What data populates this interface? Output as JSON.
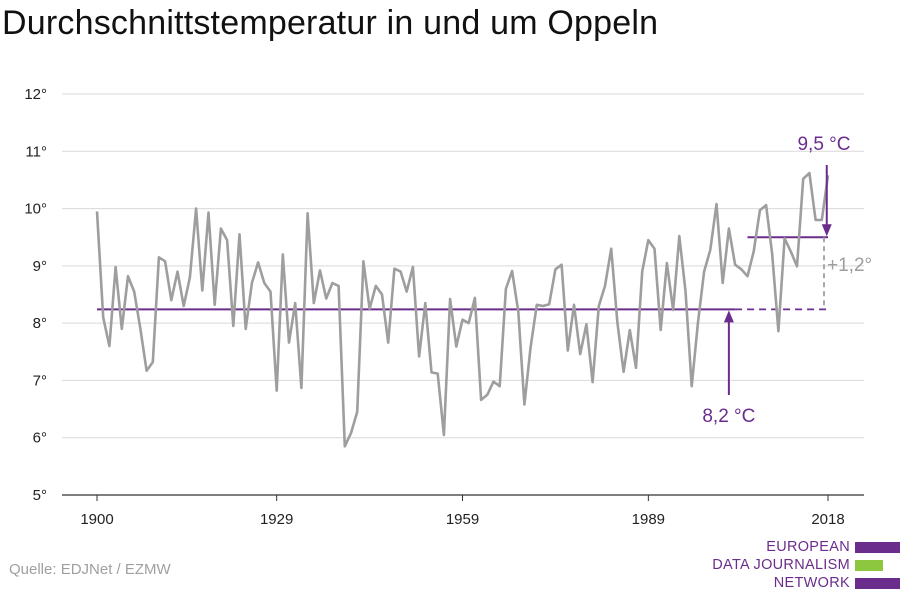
{
  "title": "Durchschnittstemperatur in und um Oppeln",
  "source": "Quelle: EDJNet / EZMW",
  "logo": {
    "lines": [
      "EUROPEAN",
      "DATA JOURNALISM",
      "NETWORK"
    ],
    "colors": [
      "#6b2d8c",
      "#8dc63f",
      "#6b2d8c"
    ]
  },
  "colors": {
    "series": "#9e9e9e",
    "accent": "#6b2d8c",
    "difference": "#9e9e9e",
    "grid": "#d9d9d9",
    "axis": "#333333"
  },
  "chart_data": {
    "type": "line",
    "title": "Durchschnittstemperatur in und um Oppeln",
    "xlabel": "",
    "ylabel": "",
    "xlim": [
      1900,
      2018
    ],
    "ylim": [
      5,
      12
    ],
    "xticks": [
      1900,
      1929,
      1959,
      1989,
      2018
    ],
    "yticks": [
      5,
      6,
      7,
      8,
      9,
      10,
      11,
      12
    ],
    "ytick_labels": [
      "5°",
      "6°",
      "7°",
      "8°",
      "9°",
      "10°",
      "11°",
      "12°"
    ],
    "grid": true,
    "x": [
      1900,
      1901,
      1902,
      1903,
      1904,
      1905,
      1906,
      1907,
      1908,
      1909,
      1910,
      1911,
      1912,
      1913,
      1914,
      1915,
      1916,
      1917,
      1918,
      1919,
      1920,
      1921,
      1922,
      1923,
      1924,
      1925,
      1926,
      1927,
      1928,
      1929,
      1930,
      1931,
      1932,
      1933,
      1934,
      1935,
      1936,
      1937,
      1938,
      1939,
      1940,
      1941,
      1942,
      1943,
      1944,
      1945,
      1946,
      1947,
      1948,
      1949,
      1950,
      1951,
      1952,
      1953,
      1954,
      1955,
      1956,
      1957,
      1958,
      1959,
      1960,
      1961,
      1962,
      1963,
      1964,
      1965,
      1966,
      1967,
      1968,
      1969,
      1970,
      1971,
      1972,
      1973,
      1974,
      1975,
      1976,
      1977,
      1978,
      1979,
      1980,
      1981,
      1982,
      1983,
      1984,
      1985,
      1986,
      1987,
      1988,
      1989,
      1990,
      1991,
      1992,
      1993,
      1994,
      1995,
      1996,
      1997,
      1998,
      1999,
      2000,
      2001,
      2002,
      2003,
      2004,
      2005,
      2006,
      2007,
      2008,
      2009,
      2010,
      2011,
      2012,
      2013,
      2014,
      2015,
      2016,
      2017,
      2018
    ],
    "series": [
      {
        "values": [
          9.95,
          8.1,
          7.6,
          8.98,
          7.9,
          8.82,
          8.55,
          7.9,
          7.17,
          7.32,
          9.15,
          9.08,
          8.4,
          8.9,
          8.3,
          8.8,
          10.0,
          8.57,
          9.93,
          8.32,
          9.65,
          9.45,
          7.95,
          9.55,
          7.9,
          8.7,
          9.06,
          8.7,
          8.55,
          6.82,
          9.2,
          7.66,
          8.35,
          6.87,
          9.92,
          8.35,
          8.92,
          8.43,
          8.7,
          8.65,
          5.85,
          6.08,
          6.45,
          9.08,
          8.25,
          8.65,
          8.5,
          7.66,
          8.95,
          8.9,
          8.55,
          8.98,
          7.42,
          8.35,
          7.14,
          7.12,
          6.05,
          8.42,
          7.59,
          8.06,
          8.0,
          8.44,
          6.66,
          6.75,
          6.98,
          6.9,
          8.6,
          8.91,
          8.2,
          6.58,
          7.58,
          8.32,
          8.3,
          8.33,
          8.94,
          9.02,
          7.52,
          8.32,
          7.46,
          7.98,
          6.97,
          8.3,
          8.65,
          9.3,
          8.01,
          7.15,
          7.88,
          7.22,
          8.9,
          9.45,
          9.3,
          7.88,
          9.05,
          8.23,
          9.52,
          8.56,
          6.9,
          8.0,
          8.9,
          9.28,
          10.08,
          8.7,
          9.65,
          9.02,
          8.94,
          8.82,
          9.25,
          9.97,
          10.06,
          9.2,
          7.86,
          9.48,
          9.25,
          8.99,
          10.52,
          10.62,
          9.8,
          9.8,
          10.58
        ]
      }
    ],
    "reference_lines": [
      {
        "label": "8,2 °C",
        "value": 8.24,
        "x_from": 1900,
        "x_solid_to": 2003,
        "x_to": 2018
      },
      {
        "label": "9,5 °C",
        "value": 9.5,
        "x_from": 2005,
        "x_to": 2018
      }
    ],
    "difference_label": "+1,2°"
  }
}
